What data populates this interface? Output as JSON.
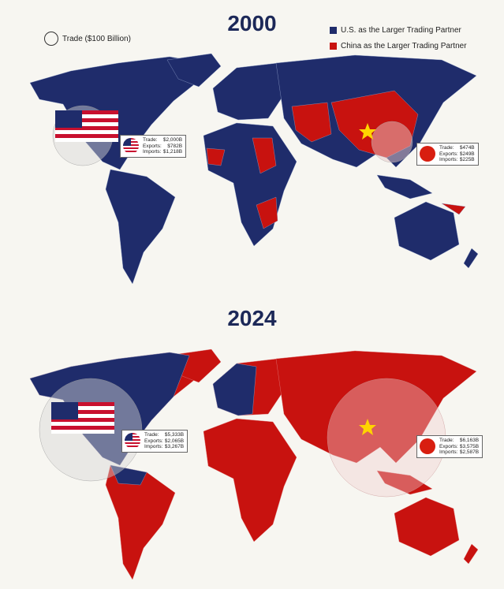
{
  "legend": {
    "trade_circle": "Trade ($100 Billion)",
    "us_label": "U.S. as the Larger Trading Partner",
    "china_label": "China as the Larger Trading Partner",
    "us_color": "#1f2c6b",
    "china_color": "#c8120f"
  },
  "maps": [
    {
      "year": "2000",
      "us": {
        "trade_label": "Trade:",
        "trade": "$2,000B",
        "exports_label": "Exports:",
        "exports": "$782B",
        "imports_label": "Imports:",
        "imports": "$1,218B"
      },
      "china": {
        "trade_label": "Trade:",
        "trade": "$474B",
        "exports_label": "Exports:",
        "exports": "$249B",
        "imports_label": "Imports:",
        "imports": "$225B"
      }
    },
    {
      "year": "2024",
      "us": {
        "trade_label": "Trade:",
        "trade": "$5,333B",
        "exports_label": "Exports:",
        "exports": "$2,065B",
        "imports_label": "Imports:",
        "imports": "$3,267B"
      },
      "china": {
        "trade_label": "Trade:",
        "trade": "$6,163B",
        "exports_label": "Exports:",
        "exports": "$3,575B",
        "imports_label": "Imports:",
        "imports": "$2,587B"
      }
    }
  ]
}
